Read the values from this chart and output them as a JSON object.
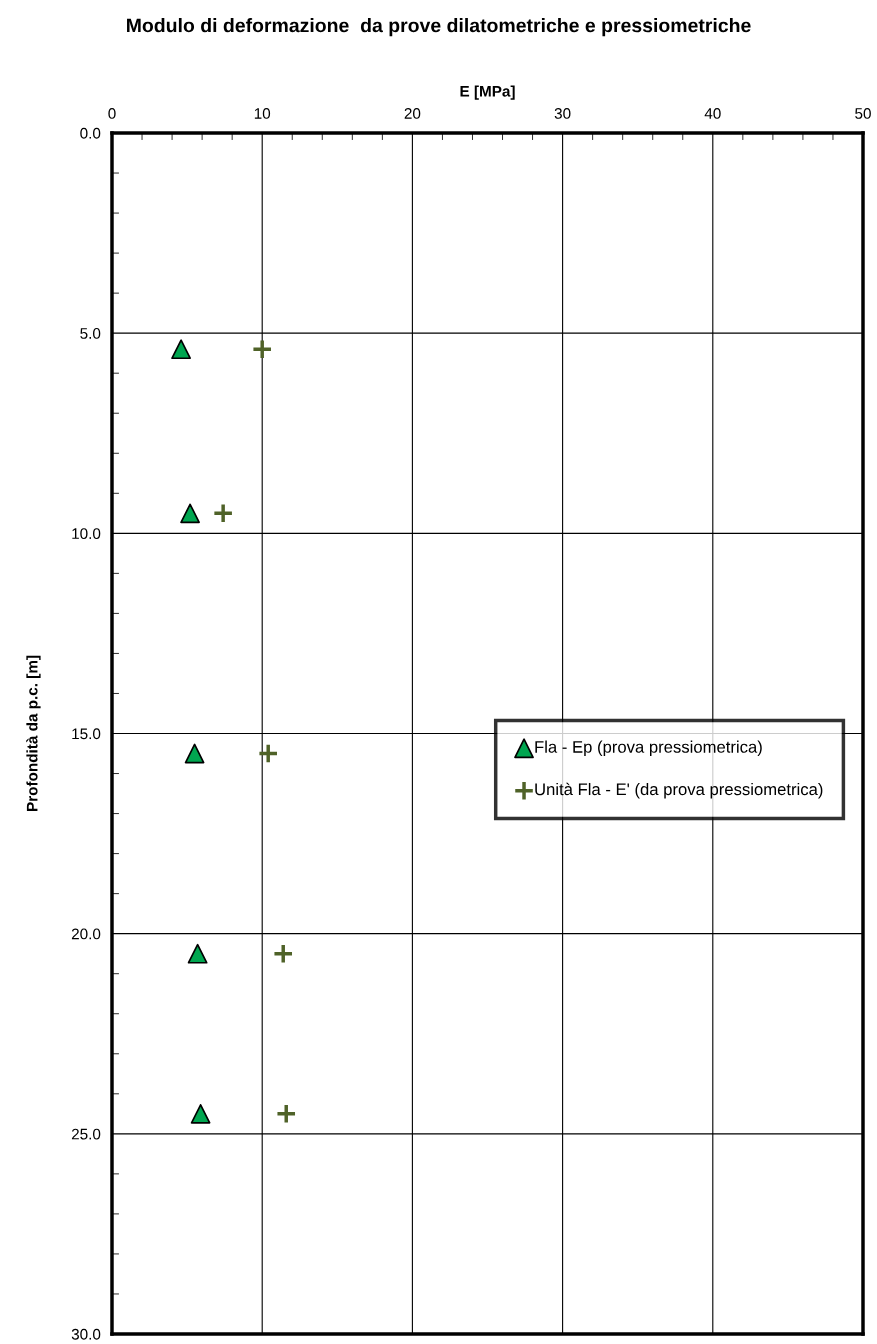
{
  "chart_data": {
    "type": "scatter",
    "title": "Modulo di deformazione  da prove dilatometriche e pressiometriche",
    "xlabel": "E [MPa]",
    "ylabel": "Profondità da p.c. [m]",
    "series": [
      {
        "name": "Fla - Ep (prova pressiometrica)",
        "color": "#00a650",
        "marker": "triangle",
        "x": [
          4.6,
          5.2,
          5.5,
          5.7,
          5.9
        ],
        "values": [
          5.4,
          9.5,
          15.5,
          20.5,
          24.5
        ]
      },
      {
        "name": "Unità Fla - E' (da prova pressiometrica)",
        "color": "#4f6228",
        "marker": "cross",
        "x": [
          10.0,
          7.4,
          10.4,
          11.4,
          11.6
        ],
        "values": [
          5.4,
          9.5,
          15.5,
          20.5,
          24.5
        ]
      }
    ],
    "xlim": [
      0,
      50
    ],
    "xticks": [
      0,
      10,
      20,
      30,
      40,
      50
    ],
    "ylim": [
      30,
      0
    ],
    "yticks": [
      {
        "value": 0,
        "label": "0.0"
      },
      {
        "value": 5,
        "label": "5.0"
      },
      {
        "value": 10,
        "label": "10.0"
      },
      {
        "value": 15,
        "label": "15.0"
      },
      {
        "value": 20,
        "label": "20.0"
      },
      {
        "value": 25,
        "label": "25.0"
      },
      {
        "value": 30,
        "label": "30.0"
      }
    ],
    "grid": true,
    "legend": "right"
  }
}
